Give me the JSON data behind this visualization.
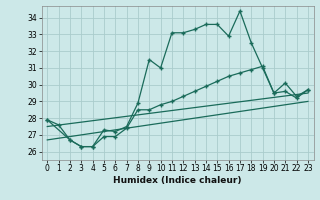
{
  "xlabel": "Humidex (Indice chaleur)",
  "bg_color": "#cce8e8",
  "grid_color": "#aacccc",
  "line_color": "#1a6b5a",
  "xlim": [
    -0.5,
    23.5
  ],
  "ylim": [
    25.5,
    34.7
  ],
  "yticks": [
    26,
    27,
    28,
    29,
    30,
    31,
    32,
    33,
    34
  ],
  "xticks": [
    0,
    1,
    2,
    3,
    4,
    5,
    6,
    7,
    8,
    9,
    10,
    11,
    12,
    13,
    14,
    15,
    16,
    17,
    18,
    19,
    20,
    21,
    22,
    23
  ],
  "series1_x": [
    0,
    1,
    2,
    3,
    4,
    5,
    6,
    7,
    8,
    9,
    10,
    11,
    12,
    13,
    14,
    15,
    16,
    17,
    18,
    19,
    20,
    21,
    22,
    23
  ],
  "series1_y": [
    27.9,
    27.6,
    26.7,
    26.3,
    26.3,
    27.3,
    27.2,
    27.5,
    28.9,
    31.5,
    31.0,
    33.1,
    33.1,
    33.3,
    33.6,
    33.6,
    32.9,
    34.4,
    32.5,
    31.0,
    29.5,
    30.1,
    29.3,
    29.7
  ],
  "series2_x": [
    0,
    2,
    3,
    4,
    5,
    6,
    7,
    8,
    9,
    10,
    11,
    12,
    13,
    14,
    15,
    16,
    17,
    18,
    19,
    20,
    21,
    22,
    23
  ],
  "series2_y": [
    27.9,
    26.7,
    26.3,
    26.3,
    26.9,
    26.9,
    27.4,
    28.5,
    28.5,
    28.8,
    29.0,
    29.3,
    29.6,
    29.9,
    30.2,
    30.5,
    30.7,
    30.9,
    31.1,
    29.5,
    29.6,
    29.2,
    29.7
  ],
  "series3_x": [
    0,
    23
  ],
  "series3_y": [
    27.5,
    29.5
  ],
  "series4_x": [
    0,
    23
  ],
  "series4_y": [
    26.7,
    29.0
  ]
}
